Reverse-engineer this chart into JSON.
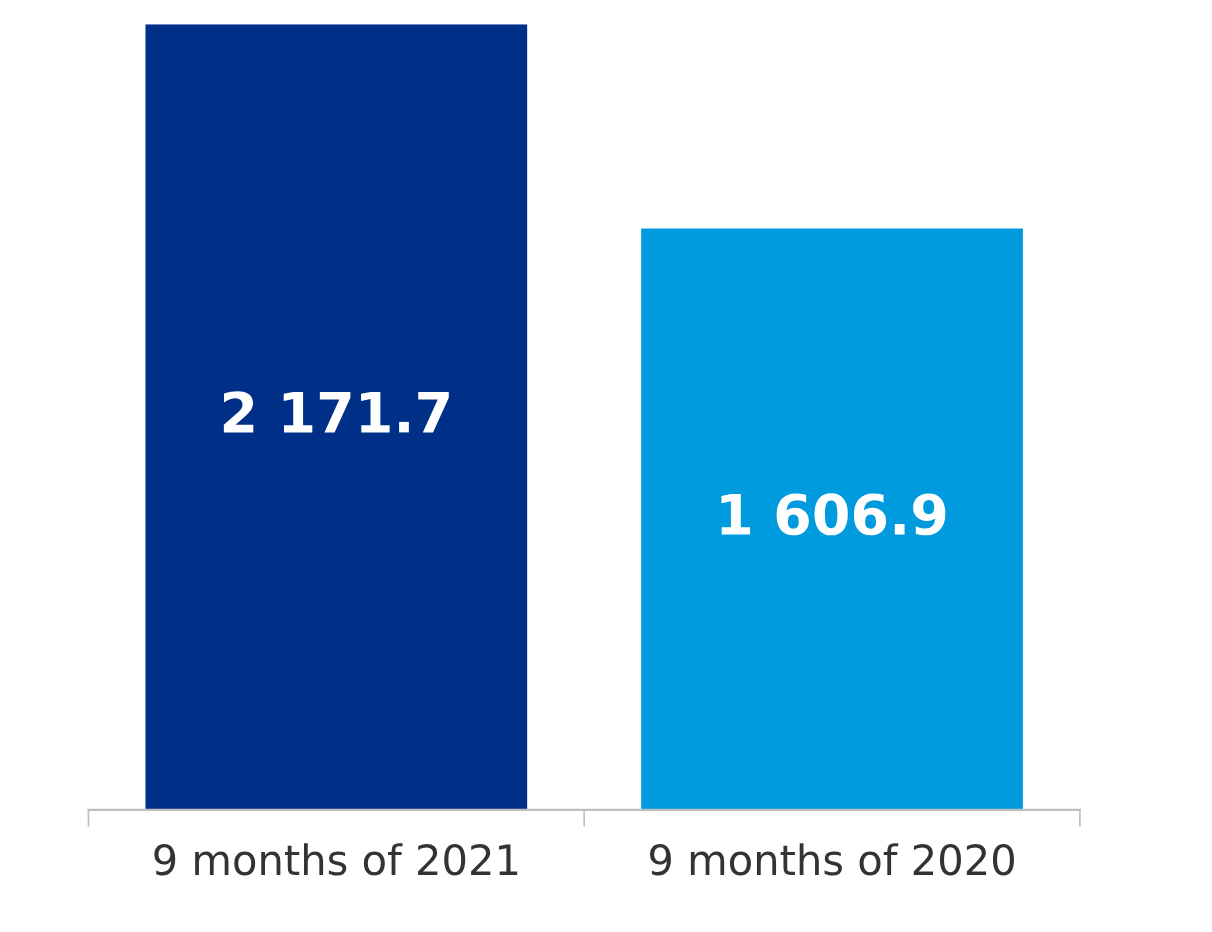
{
  "chart_data": {
    "type": "bar",
    "categories": [
      "9 months of 2021",
      "9 months of 2020"
    ],
    "values": [
      2171.7,
      1606.9
    ],
    "colors": [
      "#002f87",
      "#009ade"
    ],
    "value_labels": [
      "2 171.7",
      "1 606.9"
    ],
    "grid": false,
    "legend": false
  }
}
